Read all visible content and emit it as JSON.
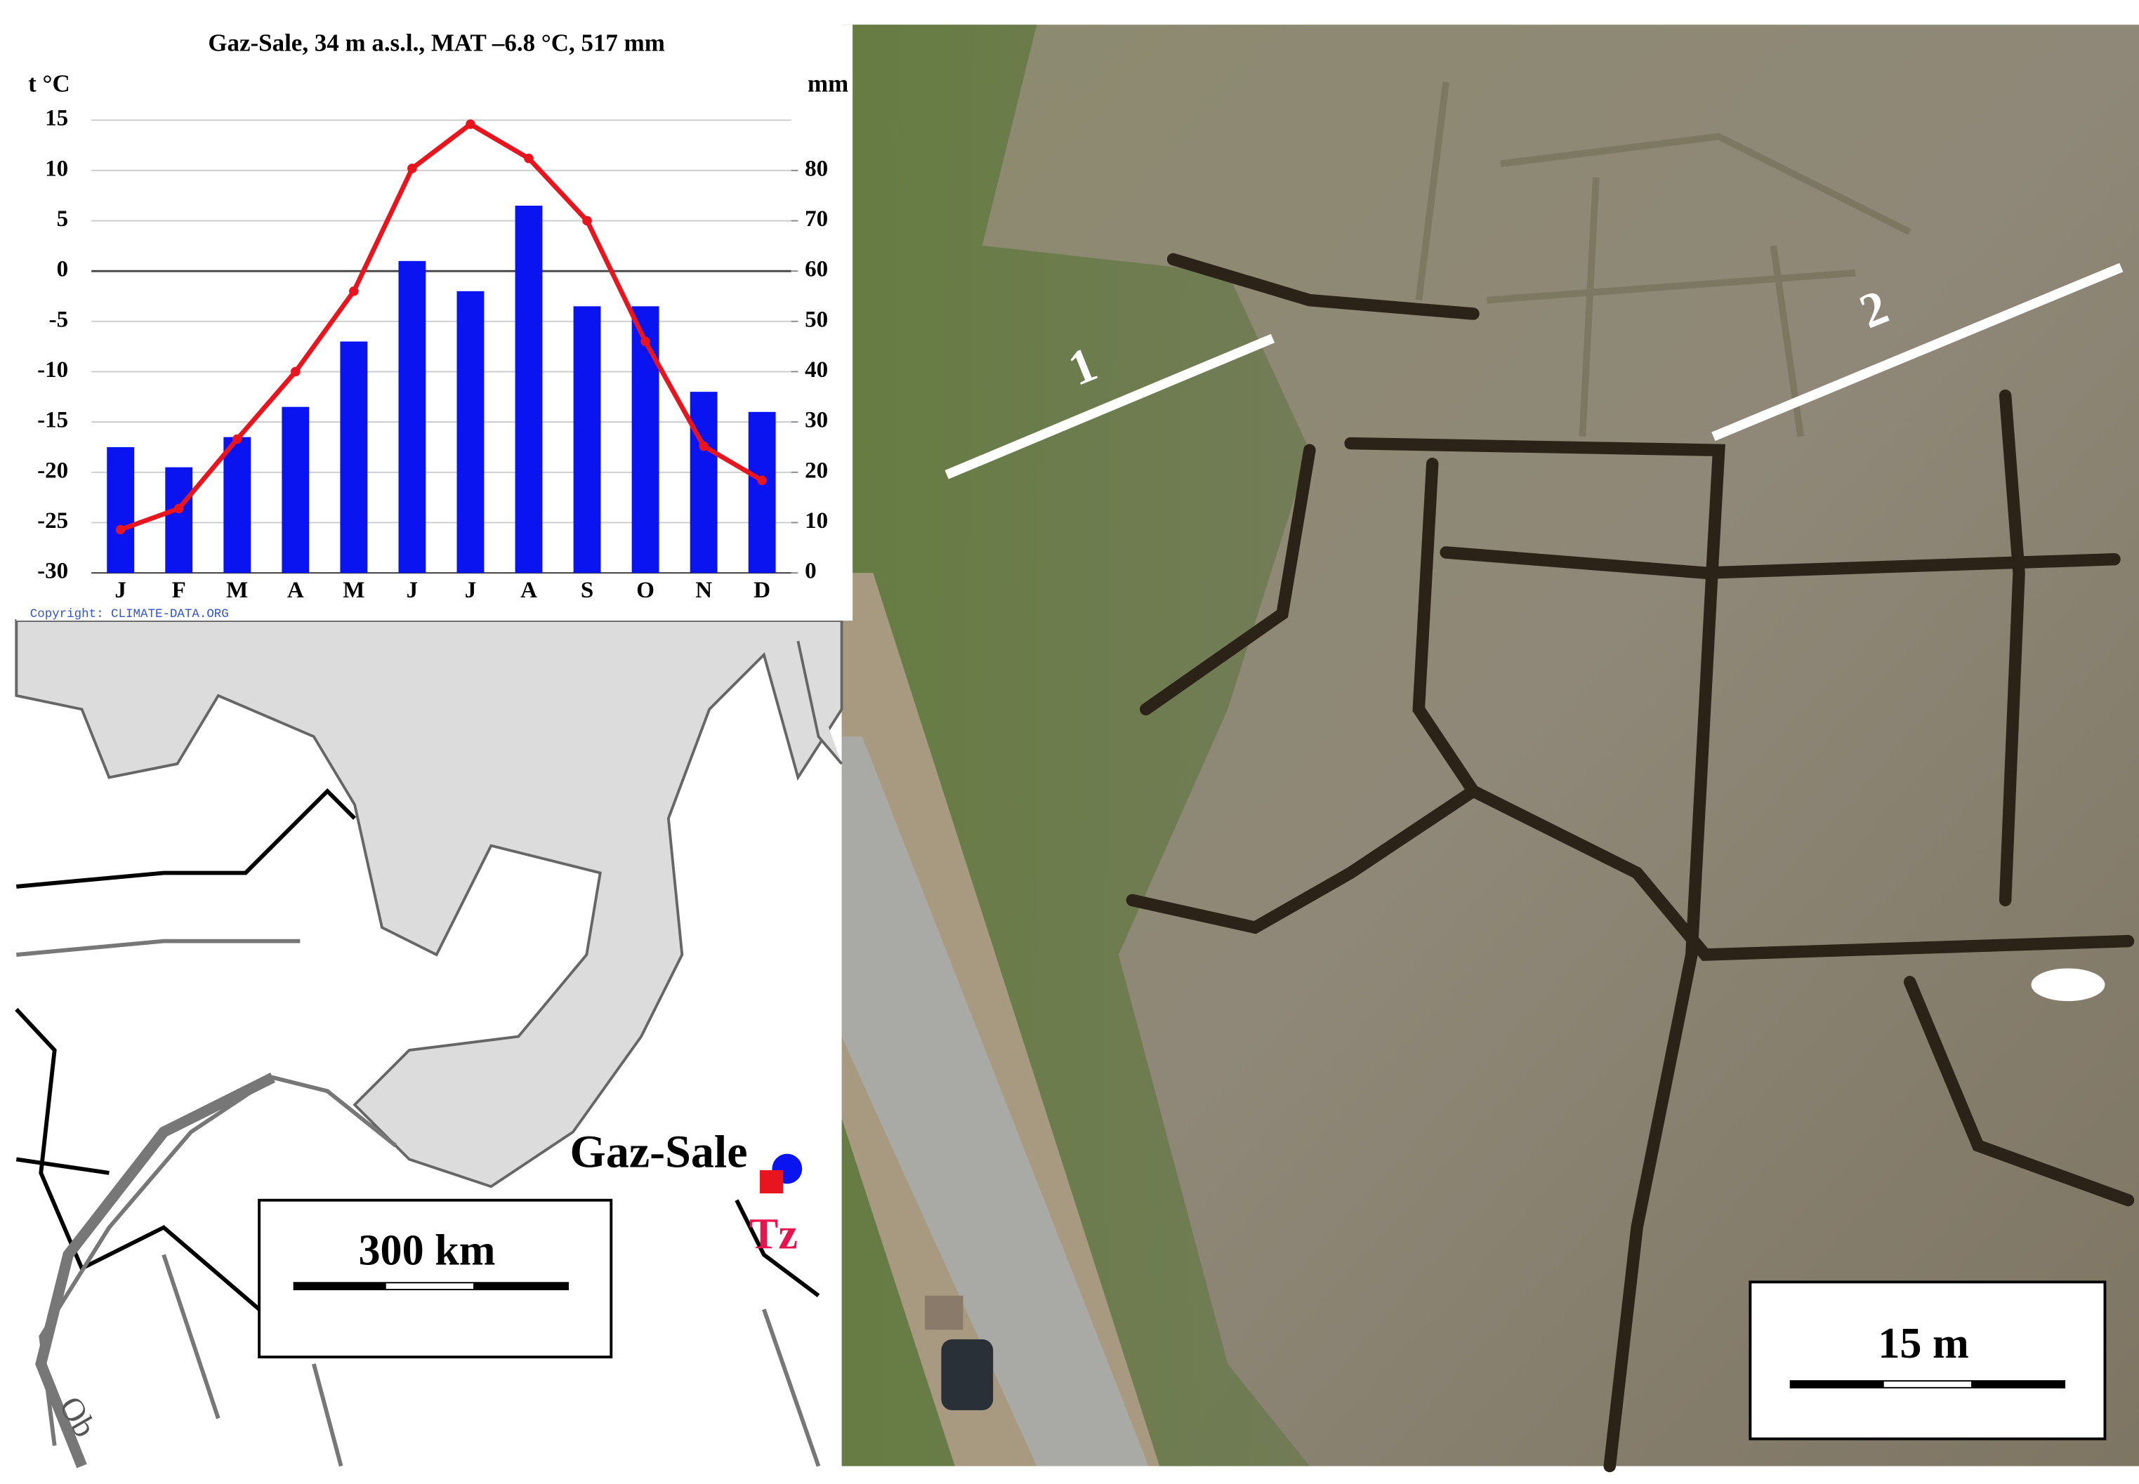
{
  "chart_data": {
    "type": "bar",
    "title": "Gaz-Sale, 34 m a.s.l., MAT –6.8 °C, 517 mm",
    "ylabel": "t °C",
    "y2label": "mm",
    "source": "Copyright: CLIMATE-DATA.ORG",
    "categories": [
      "J",
      "F",
      "M",
      "A",
      "M",
      "J",
      "J",
      "A",
      "S",
      "O",
      "N",
      "D"
    ],
    "series": [
      {
        "type": "bar",
        "axis": "y2",
        "color": "#0a14f0",
        "values": [
          25,
          21,
          27,
          33,
          46,
          62,
          56,
          73,
          53,
          53,
          36,
          32
        ]
      },
      {
        "type": "line",
        "color": "#e8141e",
        "values": [
          -25.7,
          -23.6,
          -16.7,
          -10,
          -2,
          10.2,
          14.6,
          11.2,
          5,
          -7,
          -17.4,
          -20.8
        ]
      }
    ],
    "ylim": [
      -30,
      15
    ],
    "yticks": [
      -30,
      -25,
      -20,
      -15,
      -10,
      -5,
      0,
      5,
      10,
      15
    ],
    "y2lim": [
      0,
      90
    ],
    "y2ticks": [
      0,
      10,
      20,
      30,
      40,
      50,
      60,
      70,
      80
    ],
    "grid": true
  },
  "map": {
    "place": "Gaz-Sale",
    "site": "Tz",
    "scale": "300 km",
    "river": "Ob"
  },
  "photo": {
    "transects": [
      "1",
      "2"
    ],
    "scale": "15 m"
  }
}
